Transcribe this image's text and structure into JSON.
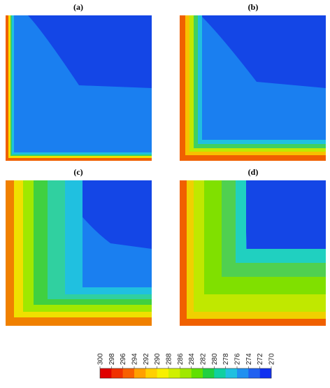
{
  "panels": [
    {
      "label": "(a)"
    },
    {
      "label": "(b)"
    },
    {
      "label": "(c)"
    },
    {
      "label": "(d)"
    }
  ],
  "colorbar": {
    "ticks": [
      300,
      298,
      296,
      294,
      292,
      290,
      288,
      286,
      284,
      282,
      280,
      278,
      276,
      274,
      272,
      270
    ],
    "colors": [
      "#e00000",
      "#f03000",
      "#f86000",
      "#ffa000",
      "#ffd000",
      "#f8f000",
      "#d0f000",
      "#a0e800",
      "#60e000",
      "#20d040",
      "#10d0a0",
      "#20c0e0",
      "#2090f0",
      "#2060f0",
      "#1030f0"
    ]
  }
}
